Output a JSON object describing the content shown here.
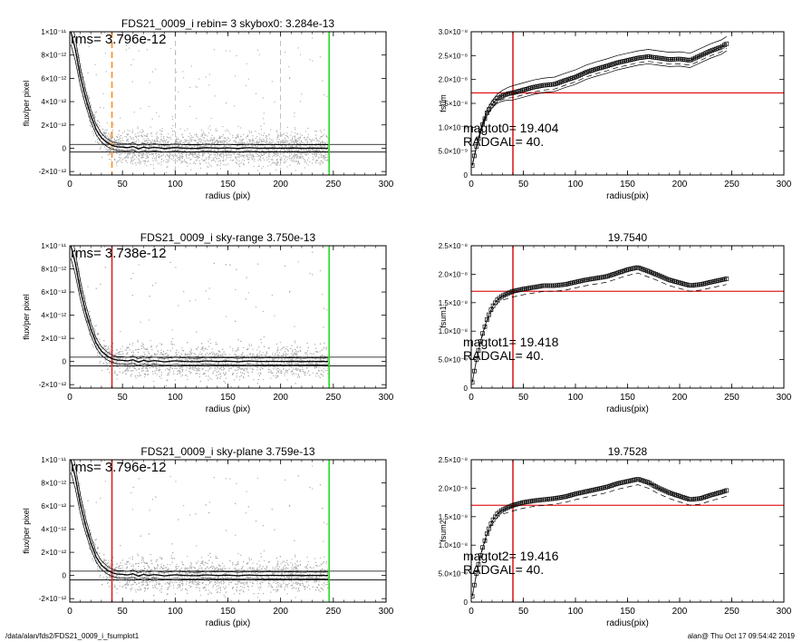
{
  "footer": {
    "path": "/data/alan/fds2/FDS21_0009_i_fsumplot1",
    "stamp": "alan@  Thu Oct 17 09:54:42 2019"
  },
  "colors": {
    "scatter": "#a8a8a8",
    "curve": "#000000",
    "radgal_line_top": "#ff8c1a",
    "radgal_line": "#e02020",
    "sky_line": "#22dd22",
    "fsum_hline": "#e02020"
  },
  "chart_data": [
    {
      "type": "scatter",
      "id": "profile-1",
      "title": "FDS21_0009_i rebin= 3    skybox0:  3.284e-13",
      "annotation": "rms= 3.796e-12",
      "xlabel": "radius (pix)",
      "ylabel": "flux/per pixel",
      "xlim": [
        0,
        300
      ],
      "ylim": [
        -2.3e-12,
        1e-11
      ],
      "xticks": [
        0,
        50,
        100,
        150,
        200,
        250,
        300
      ],
      "xtick_labels": [
        "0",
        "50",
        "100",
        "150",
        "200",
        "250",
        "300"
      ],
      "yticks": [
        -2e-12,
        0,
        2e-12,
        4e-12,
        6e-12,
        8e-12,
        1e-11
      ],
      "ytick_labels": [
        "-2×10⁻¹²",
        "0",
        "2×10⁻¹²",
        "4×10⁻¹²",
        "6×10⁻¹²",
        "8×10⁻¹²",
        "1×10⁻¹¹"
      ],
      "hlines": [
        3.3e-13,
        -3.3e-13
      ],
      "vlines": [
        {
          "x": 40,
          "color": "#ff8c1a",
          "dash": true
        },
        {
          "x": 246,
          "color": "#22dd22",
          "dash": false
        },
        {
          "x": 100,
          "color": "#999999",
          "dash": true
        },
        {
          "x": 200,
          "color": "#999999",
          "dash": true
        }
      ],
      "profile": {
        "x": [
          1,
          5,
          10,
          15,
          20,
          25,
          30,
          35,
          40,
          45,
          50,
          55,
          60,
          65,
          70,
          75,
          80,
          90,
          100,
          110,
          120,
          130,
          140,
          150,
          160,
          170,
          180,
          190,
          200,
          210,
          220,
          230,
          240,
          245
        ],
        "y": [
          1e-11,
          8.6e-12,
          6.2e-12,
          4.3e-12,
          2.8e-12,
          1.6e-12,
          9e-13,
          5e-13,
          2.5e-13,
          1.2e-13,
          1e-13,
          5e-14,
          1.5e-13,
          -5e-14,
          1e-13,
          0,
          8e-14,
          -3e-14,
          6e-14,
          0,
          -2e-14,
          5e-14,
          0,
          3e-14,
          -2e-14,
          4e-14,
          0,
          1e-14,
          0,
          2e-14,
          -1e-14,
          1e-14,
          0,
          0
        ]
      },
      "scatter_spread": 1e-12,
      "scatter_density": "dense, 0–246 pix"
    },
    {
      "type": "line",
      "id": "fsum-0",
      "title": "",
      "annotation_lines": [
        "magtot0=  19.404",
        "RADGAL=     40."
      ],
      "xlabel": "radius(pix)",
      "ylabel": "fsum",
      "xlim": [
        0,
        300
      ],
      "ylim": [
        0,
        3e-08
      ],
      "xticks": [
        0,
        50,
        100,
        150,
        200,
        250,
        300
      ],
      "xtick_labels": [
        "0",
        "50",
        "100",
        "150",
        "200",
        "250",
        "300"
      ],
      "yticks": [
        0,
        5e-09,
        1e-08,
        1.5e-08,
        2e-08,
        2.5e-08,
        3e-08
      ],
      "ytick_labels": [
        "0",
        "5.0×10⁻⁹",
        "1.0×10⁻⁸",
        "1.5×10⁻⁸",
        "2.0×10⁻⁸",
        "2.5×10⁻⁸",
        "3.0×10⁻⁸"
      ],
      "hline": 1.72e-08,
      "vline": 40,
      "x": [
        1,
        5,
        10,
        15,
        20,
        25,
        30,
        35,
        40,
        50,
        60,
        70,
        80,
        90,
        100,
        110,
        120,
        130,
        140,
        150,
        160,
        170,
        180,
        190,
        200,
        210,
        220,
        230,
        240,
        245
      ],
      "y": [
        2e-09,
        6e-09,
        1e-08,
        1.3e-08,
        1.48e-08,
        1.6e-08,
        1.66e-08,
        1.7e-08,
        1.72e-08,
        1.78e-08,
        1.84e-08,
        1.88e-08,
        1.9e-08,
        1.98e-08,
        2.05e-08,
        2.15e-08,
        2.22e-08,
        2.28e-08,
        2.35e-08,
        2.4e-08,
        2.45e-08,
        2.48e-08,
        2.45e-08,
        2.42e-08,
        2.43e-08,
        2.4e-08,
        2.5e-08,
        2.6e-08,
        2.68e-08,
        2.75e-08
      ],
      "upper_offset": 1.5e-09,
      "lower_offset": -1.5e-09,
      "dashed_offset": -1e-09,
      "markers": true
    },
    {
      "type": "scatter",
      "id": "profile-2",
      "title": "FDS21_0009_i sky-range  3.750e-13",
      "annotation": "rms= 3.738e-12",
      "xlabel": "radius (pix)",
      "ylabel": "flux/per pixel",
      "xlim": [
        0,
        300
      ],
      "ylim": [
        -2.3e-12,
        1e-11
      ],
      "xticks": [
        0,
        50,
        100,
        150,
        200,
        250,
        300
      ],
      "xtick_labels": [
        "0",
        "50",
        "100",
        "150",
        "200",
        "250",
        "300"
      ],
      "yticks": [
        -2e-12,
        0,
        2e-12,
        4e-12,
        6e-12,
        8e-12,
        1e-11
      ],
      "ytick_labels": [
        "-2×10⁻¹²",
        "0",
        "2×10⁻¹²",
        "4×10⁻¹²",
        "6×10⁻¹²",
        "8×10⁻¹²",
        "1×10⁻¹¹"
      ],
      "hlines": [
        3.75e-13,
        -3.75e-13
      ],
      "vlines": [
        {
          "x": 40,
          "color": "#e02020",
          "dash": false
        },
        {
          "x": 246,
          "color": "#22dd22",
          "dash": false
        }
      ],
      "profile": {
        "x": [
          1,
          5,
          10,
          15,
          20,
          25,
          30,
          35,
          40,
          45,
          50,
          55,
          60,
          65,
          70,
          75,
          80,
          90,
          100,
          110,
          120,
          130,
          140,
          150,
          160,
          170,
          180,
          190,
          200,
          210,
          220,
          230,
          240,
          245
        ],
        "y": [
          1e-11,
          8.6e-12,
          6.2e-12,
          4.3e-12,
          2.8e-12,
          1.6e-12,
          9e-13,
          5e-13,
          2.5e-13,
          1.2e-13,
          1e-13,
          5e-14,
          1.5e-13,
          -5e-14,
          1e-13,
          0,
          8e-14,
          -3e-14,
          6e-14,
          0,
          -2e-14,
          5e-14,
          0,
          3e-14,
          -2e-14,
          4e-14,
          0,
          1e-14,
          0,
          2e-14,
          -1e-14,
          1e-14,
          0,
          0
        ]
      },
      "scatter_spread": 1e-12,
      "scatter_density": "dense, 0–246 pix"
    },
    {
      "type": "line",
      "id": "fsum-1",
      "title": "19.7540",
      "annotation_lines": [
        "magtot1=  19.418",
        "RADGAL=     40."
      ],
      "xlabel": "radius(pix)",
      "ylabel": "fsum1",
      "xlim": [
        0,
        300
      ],
      "ylim": [
        0,
        2.5e-08
      ],
      "xticks": [
        0,
        50,
        100,
        150,
        200,
        250,
        300
      ],
      "xtick_labels": [
        "0",
        "50",
        "100",
        "150",
        "200",
        "250",
        "300"
      ],
      "yticks": [
        0,
        5e-09,
        1e-08,
        1.5e-08,
        2e-08,
        2.5e-08
      ],
      "ytick_labels": [
        "0",
        "5.0×10⁻⁹",
        "1.0×10⁻⁸",
        "1.5×10⁻⁸",
        "2.0×10⁻⁸",
        "2.5×10⁻⁸"
      ],
      "hline": 1.7e-08,
      "vline": 40,
      "x": [
        1,
        5,
        10,
        15,
        20,
        25,
        30,
        35,
        40,
        50,
        60,
        70,
        80,
        90,
        100,
        110,
        120,
        130,
        140,
        150,
        160,
        170,
        180,
        190,
        200,
        210,
        220,
        230,
        240,
        245
      ],
      "y": [
        1e-09,
        5e-09,
        9e-09,
        1.2e-08,
        1.42e-08,
        1.55e-08,
        1.62e-08,
        1.66e-08,
        1.7e-08,
        1.74e-08,
        1.77e-08,
        1.8e-08,
        1.8e-08,
        1.82e-08,
        1.86e-08,
        1.9e-08,
        1.93e-08,
        1.96e-08,
        2.02e-08,
        2.08e-08,
        2.12e-08,
        2.05e-08,
        1.98e-08,
        1.9e-08,
        1.85e-08,
        1.8e-08,
        1.82e-08,
        1.86e-08,
        1.9e-08,
        1.92e-08
      ],
      "dashed_offset": -1e-09,
      "markers": true
    },
    {
      "type": "scatter",
      "id": "profile-3",
      "title": "FDS21_0009_i sky-plane  3.759e-13",
      "annotation": "rms= 3.796e-12",
      "xlabel": "radius (pix)",
      "ylabel": "flux/per pixel",
      "xlim": [
        0,
        300
      ],
      "ylim": [
        -2.3e-12,
        1e-11
      ],
      "xticks": [
        0,
        50,
        100,
        150,
        200,
        250,
        300
      ],
      "xtick_labels": [
        "0",
        "50",
        "100",
        "150",
        "200",
        "250",
        "300"
      ],
      "yticks": [
        -2e-12,
        0,
        2e-12,
        4e-12,
        6e-12,
        8e-12,
        1e-11
      ],
      "ytick_labels": [
        "-2×10⁻¹²",
        "0",
        "2×10⁻¹²",
        "4×10⁻¹²",
        "6×10⁻¹²",
        "8×10⁻¹²",
        "1×10⁻¹¹"
      ],
      "hlines": [
        3.76e-13,
        -3.76e-13
      ],
      "vlines": [
        {
          "x": 40,
          "color": "#e02020",
          "dash": false
        },
        {
          "x": 246,
          "color": "#22dd22",
          "dash": false
        }
      ],
      "profile": {
        "x": [
          1,
          5,
          10,
          15,
          20,
          25,
          30,
          35,
          40,
          45,
          50,
          55,
          60,
          65,
          70,
          75,
          80,
          90,
          100,
          110,
          120,
          130,
          140,
          150,
          160,
          170,
          180,
          190,
          200,
          210,
          220,
          230,
          240,
          245
        ],
        "y": [
          1e-11,
          8.6e-12,
          6.2e-12,
          4.3e-12,
          2.8e-12,
          1.6e-12,
          9e-13,
          5e-13,
          2.5e-13,
          1.2e-13,
          1e-13,
          5e-14,
          1.5e-13,
          -5e-14,
          1e-13,
          0,
          8e-14,
          -3e-14,
          6e-14,
          0,
          -2e-14,
          5e-14,
          0,
          3e-14,
          -2e-14,
          4e-14,
          0,
          1e-14,
          0,
          2e-14,
          -1e-14,
          1e-14,
          0,
          0
        ]
      },
      "scatter_spread": 1e-12,
      "scatter_density": "dense, 0–246 pix"
    },
    {
      "type": "line",
      "id": "fsum-2",
      "title": "19.7528",
      "annotation_lines": [
        "magtot2=  19.416",
        "RADGAL=     40."
      ],
      "xlabel": "radius(pix)",
      "ylabel": "fsum2",
      "xlim": [
        0,
        300
      ],
      "ylim": [
        0,
        2.5e-08
      ],
      "xticks": [
        0,
        50,
        100,
        150,
        200,
        250,
        300
      ],
      "xtick_labels": [
        "0",
        "50",
        "100",
        "150",
        "200",
        "250",
        "300"
      ],
      "yticks": [
        0,
        5e-09,
        1e-08,
        1.5e-08,
        2e-08,
        2.5e-08
      ],
      "ytick_labels": [
        "0",
        "5.0×10⁻⁹",
        "1.0×10⁻⁸",
        "1.5×10⁻⁸",
        "2.0×10⁻⁸",
        "2.5×10⁻⁸"
      ],
      "hline": 1.7e-08,
      "vline": 40,
      "x": [
        1,
        5,
        10,
        15,
        20,
        25,
        30,
        35,
        40,
        50,
        60,
        70,
        80,
        90,
        100,
        110,
        120,
        130,
        140,
        150,
        160,
        170,
        180,
        190,
        200,
        210,
        220,
        230,
        240,
        245
      ],
      "y": [
        1e-09,
        5e-09,
        9e-09,
        1.2e-08,
        1.42e-08,
        1.55e-08,
        1.62e-08,
        1.66e-08,
        1.7e-08,
        1.75e-08,
        1.78e-08,
        1.8e-08,
        1.82e-08,
        1.85e-08,
        1.9e-08,
        1.94e-08,
        1.98e-08,
        2.02e-08,
        2.08e-08,
        2.12e-08,
        2.16e-08,
        2.1e-08,
        2e-08,
        1.92e-08,
        1.86e-08,
        1.8e-08,
        1.82e-08,
        1.88e-08,
        1.93e-08,
        1.96e-08
      ],
      "dashed_offset": -1e-09,
      "markers": true
    }
  ]
}
